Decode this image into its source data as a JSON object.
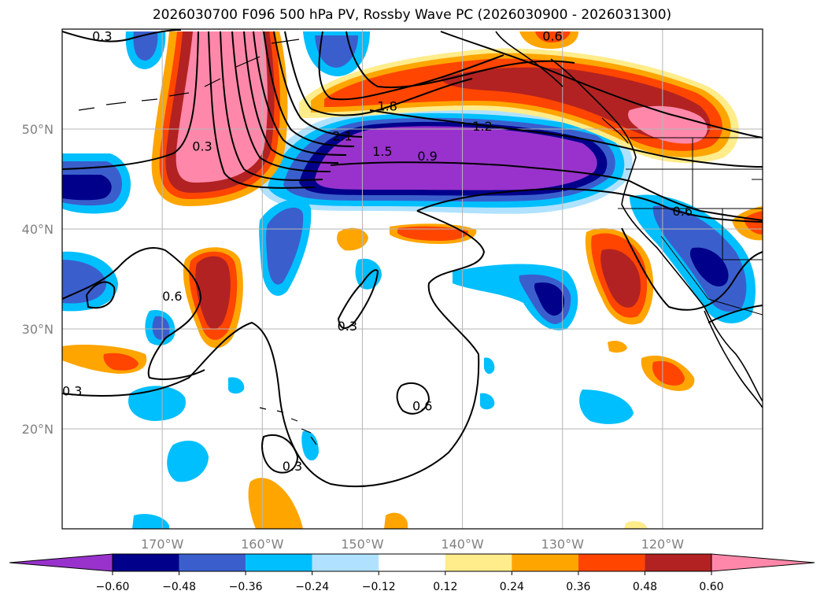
{
  "title": "2026030700 F096 500 hPa PV, Rossby Wave PC (2026030900 - 2026031300)",
  "map": {
    "projection": "PlateCarree",
    "lon_range": [
      180,
      110
    ],
    "lat_range": [
      10,
      60
    ],
    "gridlines": true,
    "coastlines": true,
    "lat_ticks": [
      {
        "lat": 20,
        "label": "20°N"
      },
      {
        "lat": 30,
        "label": "30°N"
      },
      {
        "lat": 40,
        "label": "40°N"
      },
      {
        "lat": 50,
        "label": "50°N"
      }
    ],
    "lon_ticks": [
      {
        "lon": 170,
        "label": "170°W"
      },
      {
        "lon": 160,
        "label": "160°W"
      },
      {
        "lon": 150,
        "label": "150°W"
      },
      {
        "lon": 140,
        "label": "140°W"
      },
      {
        "lon": 130,
        "label": "130°W"
      },
      {
        "lon": 120,
        "label": "120°W"
      }
    ],
    "contour_labels": [
      {
        "text": "0.3",
        "lon": 176,
        "lat": 59
      },
      {
        "text": "0.3",
        "lon": 166,
        "lat": 48
      },
      {
        "text": "1.8",
        "lon": 147.5,
        "lat": 52
      },
      {
        "text": "2.1",
        "lon": 152,
        "lat": 49
      },
      {
        "text": "1.5",
        "lon": 148,
        "lat": 47.5
      },
      {
        "text": "0.9",
        "lon": 143.5,
        "lat": 47
      },
      {
        "text": "1.2",
        "lon": 138,
        "lat": 50
      },
      {
        "text": "0.6",
        "lon": 131,
        "lat": 59
      },
      {
        "text": "0.6",
        "lon": 118,
        "lat": 41.5
      },
      {
        "text": "0.6",
        "lon": 169,
        "lat": 33
      },
      {
        "text": "0.3",
        "lon": 151.5,
        "lat": 30
      },
      {
        "text": "0.3",
        "lon": 179,
        "lat": 23.5
      },
      {
        "text": "0.6",
        "lon": 144,
        "lat": 22
      },
      {
        "text": "0.3",
        "lon": 157,
        "lat": 16
      }
    ]
  },
  "colorbar": {
    "levels": [
      -0.6,
      -0.48,
      -0.36,
      -0.24,
      -0.12,
      0.12,
      0.24,
      0.36,
      0.48,
      0.6
    ],
    "tick_labels": [
      "−0.60",
      "−0.48",
      "−0.36",
      "−0.24",
      "−0.12",
      "0.12",
      "0.24",
      "0.36",
      "0.48",
      "0.60"
    ],
    "colors": [
      "#9932cc",
      "#00008b",
      "#3a5fcd",
      "#00bfff",
      "#b0e2ff",
      "#ffffff",
      "#ffec8b",
      "#ffa500",
      "#ff4500",
      "#b22222",
      "#ff88aa"
    ],
    "extend": "both"
  }
}
